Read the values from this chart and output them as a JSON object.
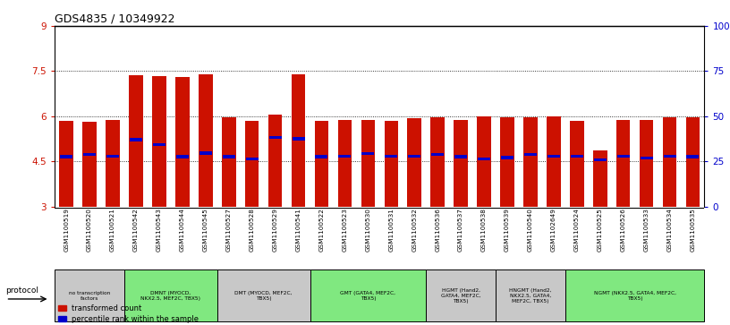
{
  "title": "GDS4835 / 10349922",
  "bar_bottom": 3.0,
  "ylim_left": [
    3.0,
    9.0
  ],
  "ylim_right": [
    0,
    100
  ],
  "yticks_left": [
    3.0,
    4.5,
    6.0,
    7.5,
    9.0
  ],
  "yticks_right": [
    0,
    25,
    50,
    75,
    100
  ],
  "ytick_labels_left": [
    "3",
    "4.5",
    "6",
    "7.5",
    "9"
  ],
  "ytick_labels_right": [
    "0",
    "25",
    "50",
    "75",
    "100%"
  ],
  "samples": [
    "GSM1100519",
    "GSM1100520",
    "GSM1100521",
    "GSM1100542",
    "GSM1100543",
    "GSM1100544",
    "GSM1100545",
    "GSM1100527",
    "GSM1100528",
    "GSM1100529",
    "GSM1100541",
    "GSM1100522",
    "GSM1100523",
    "GSM1100530",
    "GSM1100531",
    "GSM1100532",
    "GSM1100536",
    "GSM1100537",
    "GSM1100538",
    "GSM1100539",
    "GSM1100540",
    "GSM1102649",
    "GSM1100524",
    "GSM1100525",
    "GSM1100526",
    "GSM1100533",
    "GSM1100534",
    "GSM1100535"
  ],
  "bar_heights": [
    5.85,
    5.82,
    5.87,
    7.35,
    7.32,
    7.3,
    7.38,
    5.95,
    5.85,
    6.05,
    7.38,
    5.85,
    5.87,
    5.87,
    5.85,
    5.92,
    5.97,
    5.87,
    6.0,
    5.95,
    5.95,
    5.99,
    5.85,
    4.85,
    5.87,
    5.88,
    5.97,
    5.97
  ],
  "blue_positions": [
    4.65,
    4.72,
    4.67,
    5.22,
    5.05,
    4.65,
    4.77,
    4.65,
    4.58,
    5.3,
    5.25,
    4.65,
    4.67,
    4.75,
    4.67,
    4.67,
    4.72,
    4.65,
    4.58,
    4.62,
    4.72,
    4.67,
    4.67,
    4.55,
    4.67,
    4.6,
    4.67,
    4.65
  ],
  "groups": [
    {
      "label": "no transcription\nfactors",
      "start": 0,
      "end": 3,
      "color": "#c8c8c8"
    },
    {
      "label": "DMNT (MYOCD,\nNKX2.5, MEF2C, TBX5)",
      "start": 3,
      "end": 7,
      "color": "#80e880"
    },
    {
      "label": "DMT (MYOCD, MEF2C,\nTBX5)",
      "start": 7,
      "end": 11,
      "color": "#c8c8c8"
    },
    {
      "label": "GMT (GATA4, MEF2C,\nTBX5)",
      "start": 11,
      "end": 16,
      "color": "#80e880"
    },
    {
      "label": "HGMT (Hand2,\nGATA4, MEF2C,\nTBX5)",
      "start": 16,
      "end": 19,
      "color": "#c8c8c8"
    },
    {
      "label": "HNGMT (Hand2,\nNKX2.5, GATA4,\nMEF2C, TBX5)",
      "start": 19,
      "end": 22,
      "color": "#c8c8c8"
    },
    {
      "label": "NGMT (NKX2.5, GATA4, MEF2C,\nTBX5)",
      "start": 22,
      "end": 28,
      "color": "#80e880"
    }
  ],
  "bar_color": "#cc1100",
  "blue_color": "#0000cc",
  "title_fontsize": 9,
  "axis_label_color_left": "#cc1100",
  "axis_label_color_right": "#0000cc",
  "protocol_label": "protocol",
  "legend_items": [
    {
      "label": "transformed count",
      "color": "#cc1100"
    },
    {
      "label": "percentile rank within the sample",
      "color": "#0000cc"
    }
  ]
}
